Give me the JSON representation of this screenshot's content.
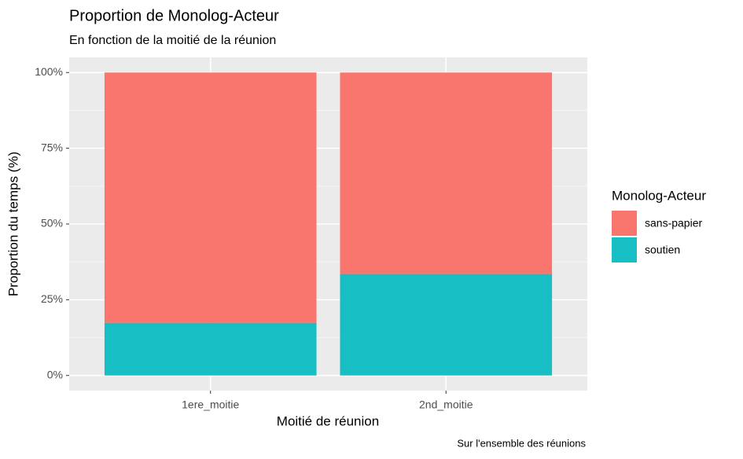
{
  "chart_data": {
    "type": "bar",
    "stacked": true,
    "title": "Proportion de Monolog-Acteur",
    "subtitle": "En fonction de la moitié de la réunion",
    "x_label": "Moitié de réunion",
    "y_label": "Proportion du temps (%)",
    "caption": "Sur l'ensemble des réunions",
    "legend_title": "Monolog-Acteur",
    "categories": [
      "1ere_moitie",
      "2nd_moitie"
    ],
    "series": [
      {
        "name": "sans-papier",
        "color": "#f8766d",
        "values": [
          82.6,
          66.5
        ]
      },
      {
        "name": "soutien",
        "color": "#17bec4",
        "values": [
          17.4,
          33.5
        ]
      }
    ],
    "ylim": [
      -5,
      105
    ],
    "yticks": [
      {
        "value": 0,
        "label": "0%"
      },
      {
        "value": 25,
        "label": "25%"
      },
      {
        "value": 50,
        "label": "50%"
      },
      {
        "value": 75,
        "label": "75%"
      },
      {
        "value": 100,
        "label": "100%"
      }
    ],
    "grid": true
  }
}
